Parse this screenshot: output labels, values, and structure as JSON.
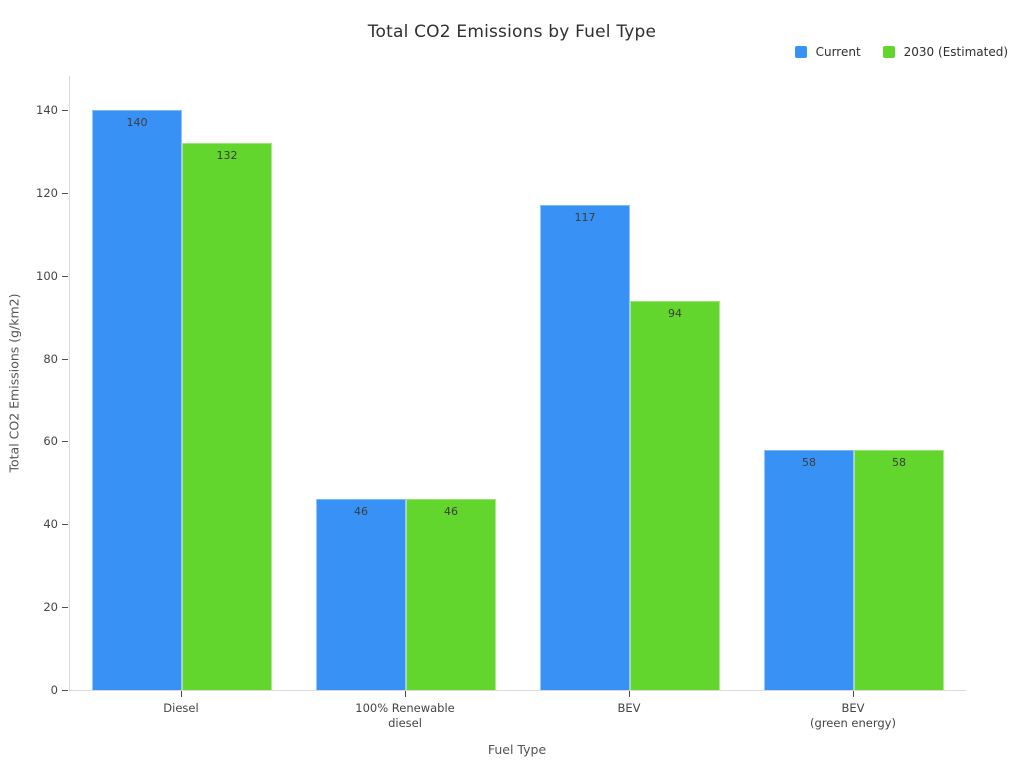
{
  "chart_data": {
    "type": "bar",
    "title": "Total CO2 Emissions by Fuel Type",
    "xlabel": "Fuel Type",
    "ylabel": "Total CO2 Emissions (g/km2)",
    "categories": [
      "Diesel",
      "100% Renewable\ndiesel",
      "BEV",
      "BEV\n(green energy)"
    ],
    "series": [
      {
        "name": "Current",
        "color": "#3892F5",
        "values": [
          140,
          46,
          117,
          58
        ]
      },
      {
        "name": "2030 (Estimated)",
        "color": "#62D62C",
        "values": [
          132,
          46,
          94,
          58
        ]
      }
    ],
    "bar_value_labels": [
      [
        "140",
        "46",
        "117",
        "58"
      ],
      [
        "132",
        "46",
        "94",
        "58"
      ]
    ],
    "ylim": [
      0,
      148.24
    ],
    "yticks": [
      0,
      20,
      40,
      60,
      80,
      100,
      120,
      140
    ],
    "grid": false,
    "legend_position": "top-right",
    "plot_background": "#ffffff"
  },
  "style_colors": {
    "axis_line": "#d9d9d9",
    "tick_text": "#444444",
    "axis_title_text": "#545454",
    "title_text": "#2f2f2f",
    "bar_label_text": "#3c3c3c"
  }
}
